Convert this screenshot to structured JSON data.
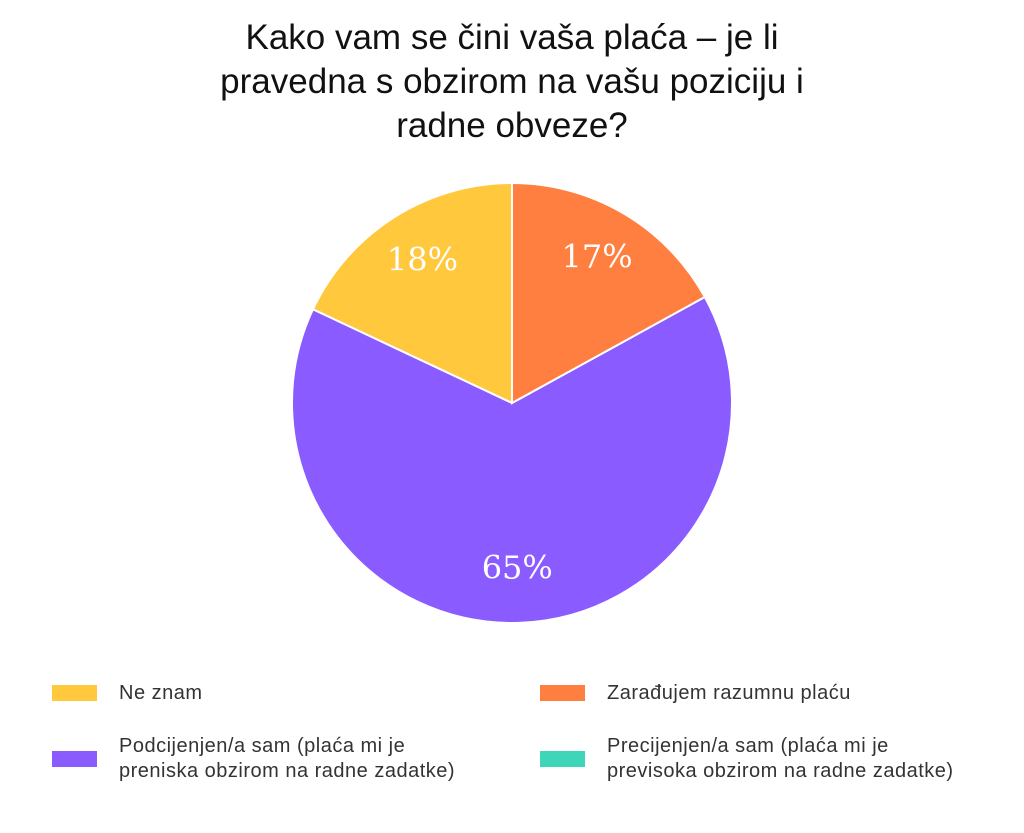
{
  "chart_data": {
    "type": "pie",
    "title": "Kako vam se čini vaša plaća – je li pravedna s obzirom na vašu poziciju i radne obveze?",
    "categories": [
      "Ne znam",
      "Podcijenjen/a sam (plaća mi je preniska obzirom na radne zadatke)",
      "Zarađujem razumnu plaću",
      "Precijenjen/a sam (plaća mi je previsoka obzirom na radne zadatke)"
    ],
    "values": [
      18,
      65,
      17,
      0
    ],
    "value_labels": [
      "18%",
      "65%",
      "17%",
      null
    ],
    "colors": [
      "#ffc83d",
      "#8a5cff",
      "#ff7f40",
      "#3ed6b8"
    ]
  }
}
